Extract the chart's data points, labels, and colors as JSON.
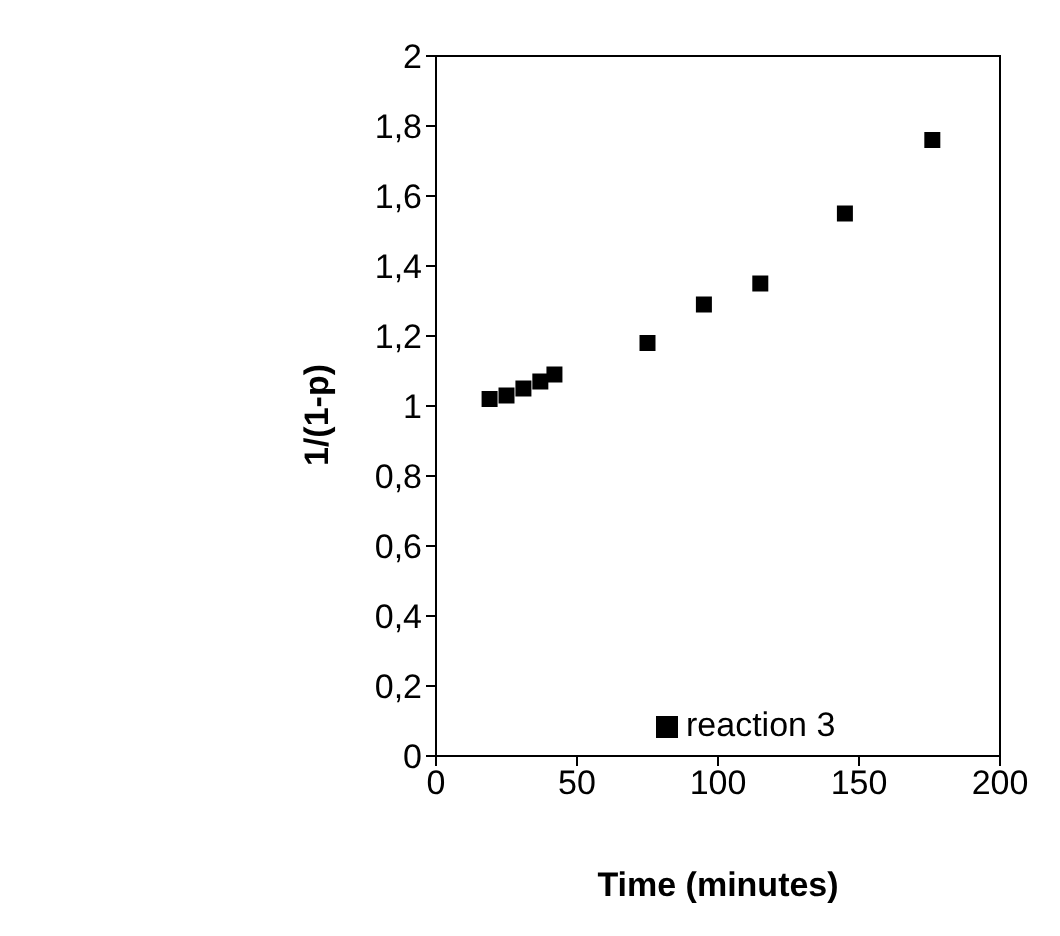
{
  "chart_data": {
    "type": "scatter",
    "xlabel": "Time (minutes)",
    "ylabel": "1/(1-p)",
    "x": [
      19,
      25,
      31,
      37,
      42,
      75,
      95,
      115,
      145,
      176
    ],
    "series": [
      {
        "name": "reaction 3",
        "color": "#000000",
        "values": [
          1.02,
          1.03,
          1.05,
          1.07,
          1.09,
          1.18,
          1.29,
          1.35,
          1.55,
          1.76
        ]
      }
    ],
    "xlim": [
      0,
      200
    ],
    "xticks": [
      0,
      50,
      100,
      150,
      200
    ],
    "ylim": [
      0,
      2
    ],
    "yticks": [
      0,
      {
        "value": 0.2,
        "label": "0,2"
      },
      {
        "value": 0.4,
        "label": "0,4"
      },
      {
        "value": 0.6,
        "label": "0,6"
      },
      {
        "value": 0.8,
        "label": "0,8"
      },
      1,
      {
        "value": 1.2,
        "label": "1,2"
      },
      {
        "value": 1.4,
        "label": "1,4"
      },
      {
        "value": 1.6,
        "label": "1,6"
      },
      {
        "value": 1.8,
        "label": "1,8"
      },
      2
    ],
    "marker": "square",
    "grid": false,
    "legend": "bottom right"
  }
}
